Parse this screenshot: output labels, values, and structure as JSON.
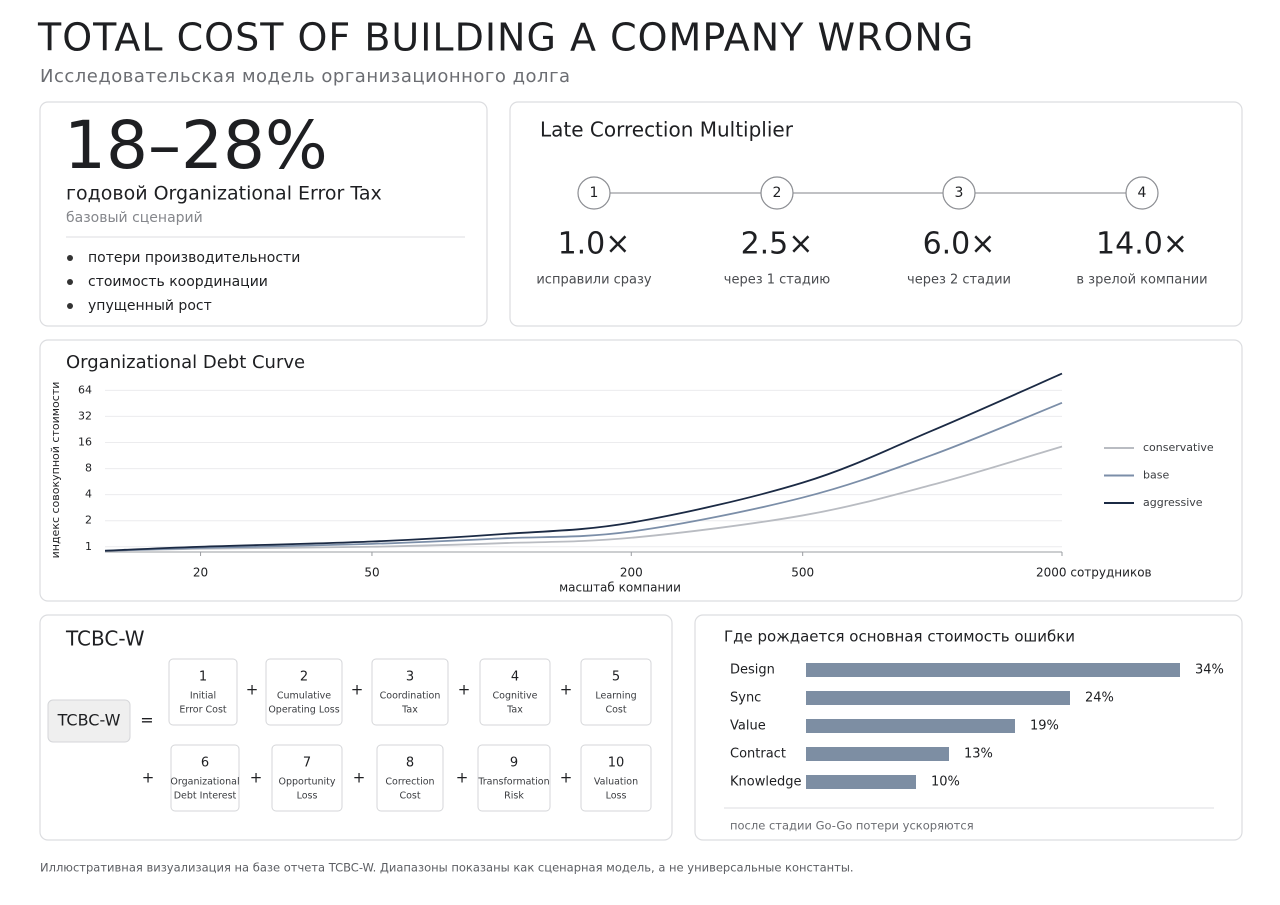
{
  "header": {
    "title": "TOTAL COST OF BUILDING A COMPANY WRONG",
    "subtitle": "Исследовательская модель организационного долга"
  },
  "kpi": {
    "value": "18–28%",
    "label": "годовой Organizational Error Tax",
    "note": "базовый сценарий",
    "bullets": [
      "потери производительности",
      "стоимость координации",
      "упущенный рост"
    ]
  },
  "multiplier": {
    "title": "Late Correction Multiplier",
    "steps": [
      {
        "n": "1",
        "value": "1.0×",
        "label": "исправили сразу"
      },
      {
        "n": "2",
        "value": "2.5×",
        "label": "через 1 стадию"
      },
      {
        "n": "3",
        "value": "6.0×",
        "label": "через 2 стадии"
      },
      {
        "n": "4",
        "value": "14.0×",
        "label": "в зрелой компании"
      }
    ]
  },
  "chart_data": [
    {
      "type": "line",
      "title": "Organizational Debt Curve",
      "y_label": "индекс совокупной стоимости",
      "x_label": "масштаб компании",
      "xscale": "log",
      "yscale": "log",
      "grid": true,
      "legend": "right",
      "x": [
        12,
        20,
        50,
        100,
        200,
        500,
        1000,
        2000
      ],
      "xlim": [
        12,
        2000
      ],
      "xticks": [
        20,
        50,
        200,
        500,
        {
          "value": 2000,
          "label": "2000 сотрудников"
        }
      ],
      "ylim": [
        0.87,
        110
      ],
      "yticks": [
        1,
        2,
        4,
        8,
        16,
        32,
        64
      ],
      "series": [
        {
          "name": "conservative",
          "color": "#b9bcc2",
          "values": [
            0.9,
            0.95,
            1.0,
            1.1,
            1.27,
            2.3,
            5.2,
            14.4
          ]
        },
        {
          "name": "base",
          "color": "#7b8ea8",
          "values": [
            0.9,
            0.97,
            1.08,
            1.25,
            1.5,
            3.7,
            11.5,
            46
          ]
        },
        {
          "name": "aggressive",
          "color": "#1b2a44",
          "values": [
            0.9,
            1.0,
            1.15,
            1.4,
            1.9,
            5.5,
            22,
            100
          ]
        }
      ]
    },
    {
      "type": "hbar",
      "title": "Где рождается основная стоимость ошибки",
      "categories": [
        "Design",
        "Sync",
        "Value",
        "Contract",
        "Knowledge"
      ],
      "values": [
        34,
        24,
        19,
        13,
        10
      ],
      "value_labels": [
        "34%",
        "24%",
        "19%",
        "13%",
        "10%"
      ],
      "color": "#7d8ea3",
      "note": "после стадии Go-Go потери ускоряются"
    }
  ],
  "formula": {
    "title": "TCBC-W",
    "lhs": "TCBC-W",
    "equals": "=",
    "plus": "+",
    "terms": [
      {
        "n": "1",
        "lines": [
          "Initial",
          "Error Cost"
        ]
      },
      {
        "n": "2",
        "lines": [
          "Cumulative",
          "Operating Loss"
        ]
      },
      {
        "n": "3",
        "lines": [
          "Coordination",
          "Tax"
        ]
      },
      {
        "n": "4",
        "lines": [
          "Cognitive",
          "Tax"
        ]
      },
      {
        "n": "5",
        "lines": [
          "Learning",
          "Cost"
        ]
      },
      {
        "n": "6",
        "lines": [
          "Organizational",
          "Debt Interest"
        ]
      },
      {
        "n": "7",
        "lines": [
          "Opportunity",
          "Loss"
        ]
      },
      {
        "n": "8",
        "lines": [
          "Correction",
          "Cost"
        ]
      },
      {
        "n": "9",
        "lines": [
          "Transformation",
          "Risk"
        ]
      },
      {
        "n": "10",
        "lines": [
          "Valuation",
          "Loss"
        ]
      }
    ]
  },
  "footer": "Иллюстративная визуализация на базе отчета TCBC-W. Диапазоны показаны как сценарная модель, а не универсальные константы."
}
